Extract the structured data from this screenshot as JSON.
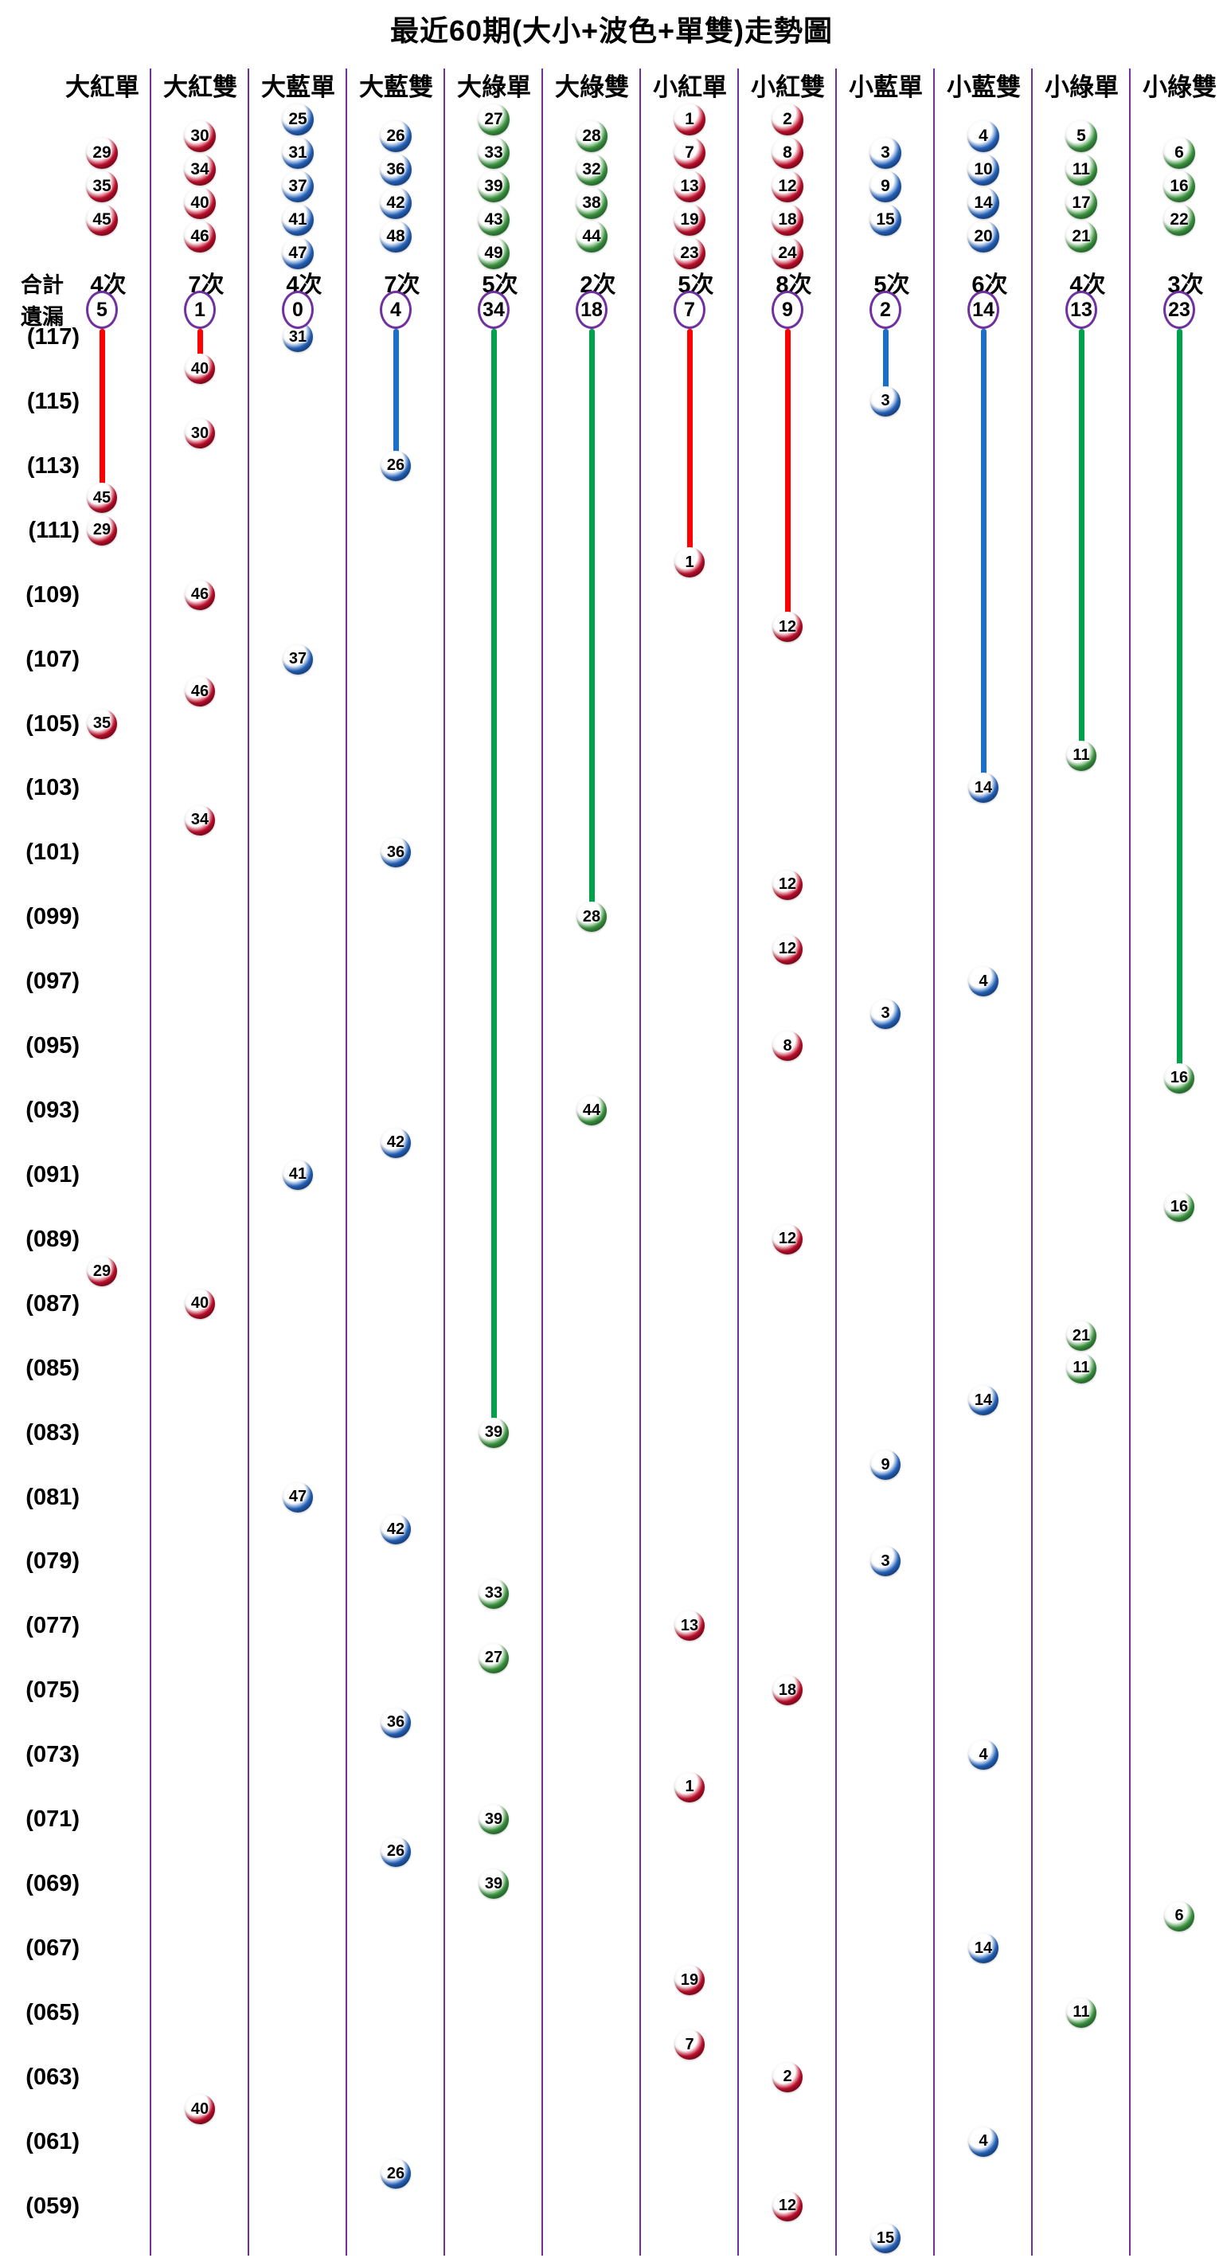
{
  "title": "最近60期(大小+波色+單雙)走勢圖",
  "gutter": {
    "total_label": "合計",
    "miss_label": "遺漏",
    "times_suffix": "次"
  },
  "colors": {
    "separator": "#7030a0",
    "miss_circle_ring": "#7030a0",
    "text": "#000000",
    "red": {
      "ball": "#cc1130",
      "ball_dark": "#7a0018",
      "line": "#ff0000"
    },
    "blue": {
      "ball": "#2a6bc8",
      "ball_dark": "#123f86",
      "line": "#1c6fc8"
    },
    "green": {
      "ball": "#43a047",
      "ball_dark": "#1b6e2a",
      "line": "#00a14b"
    }
  },
  "columns": [
    {
      "label": "大紅單",
      "color": "red",
      "numbers": [
        29,
        35,
        45
      ],
      "total": 4,
      "miss": 5
    },
    {
      "label": "大紅雙",
      "color": "red",
      "numbers": [
        30,
        34,
        40,
        46
      ],
      "total": 7,
      "miss": 1
    },
    {
      "label": "大藍單",
      "color": "blue",
      "numbers": [
        25,
        31,
        37,
        41,
        47
      ],
      "total": 4,
      "miss": 0
    },
    {
      "label": "大藍雙",
      "color": "blue",
      "numbers": [
        26,
        36,
        42,
        48
      ],
      "total": 7,
      "miss": 4
    },
    {
      "label": "大綠單",
      "color": "green",
      "numbers": [
        27,
        33,
        39,
        43,
        49
      ],
      "total": 5,
      "miss": 34
    },
    {
      "label": "大綠雙",
      "color": "green",
      "numbers": [
        28,
        32,
        38,
        44
      ],
      "total": 2,
      "miss": 18
    },
    {
      "label": "小紅單",
      "color": "red",
      "numbers": [
        1,
        7,
        13,
        19,
        23
      ],
      "total": 5,
      "miss": 7
    },
    {
      "label": "小紅雙",
      "color": "red",
      "numbers": [
        2,
        8,
        12,
        18,
        24
      ],
      "total": 8,
      "miss": 9
    },
    {
      "label": "小藍單",
      "color": "blue",
      "numbers": [
        3,
        9,
        15
      ],
      "total": 5,
      "miss": 2
    },
    {
      "label": "小藍雙",
      "color": "blue",
      "numbers": [
        4,
        10,
        14,
        20
      ],
      "total": 6,
      "miss": 14
    },
    {
      "label": "小綠單",
      "color": "green",
      "numbers": [
        5,
        11,
        17,
        21
      ],
      "total": 4,
      "miss": 13
    },
    {
      "label": "小綠雙",
      "color": "green",
      "numbers": [
        6,
        16,
        22
      ],
      "total": 3,
      "miss": 23
    }
  ],
  "period_labels": [
    "(117)",
    "(115)",
    "(113)",
    "(111)",
    "(109)",
    "(107)",
    "(105)",
    "(103)",
    "(101)",
    "(099)",
    "(097)",
    "(095)",
    "(093)",
    "(091)",
    "(089)",
    "(087)",
    "(085)",
    "(083)",
    "(081)",
    "(079)",
    "(077)",
    "(075)",
    "(073)",
    "(071)",
    "(069)",
    "(067)",
    "(065)",
    "(063)",
    "(061)",
    "(059)"
  ],
  "chart_data": {
    "type": "scatter",
    "title": "最近60期(大小+波色+單雙)走勢圖",
    "x_categories": [
      "大紅單",
      "大紅雙",
      "大藍單",
      "大藍雙",
      "大綠單",
      "大綠雙",
      "小紅單",
      "小紅雙",
      "小藍單",
      "小藍雙",
      "小綠單",
      "小綠雙"
    ],
    "y_axis": {
      "top_period": 117,
      "bottom_period": 58,
      "labeled_every": 2
    },
    "totals_per_column": [
      4,
      7,
      4,
      7,
      5,
      2,
      5,
      8,
      5,
      6,
      4,
      3
    ],
    "miss_per_column": [
      5,
      1,
      0,
      4,
      34,
      18,
      7,
      9,
      2,
      14,
      13,
      23
    ],
    "draws": [
      {
        "p": 117,
        "c": 2,
        "n": 31
      },
      {
        "p": 116,
        "c": 1,
        "n": 40
      },
      {
        "p": 115,
        "c": 8,
        "n": 3
      },
      {
        "p": 114,
        "c": 1,
        "n": 30
      },
      {
        "p": 113,
        "c": 3,
        "n": 26
      },
      {
        "p": 112,
        "c": 0,
        "n": 45
      },
      {
        "p": 111,
        "c": 0,
        "n": 29
      },
      {
        "p": 110,
        "c": 6,
        "n": 1
      },
      {
        "p": 109,
        "c": 1,
        "n": 46
      },
      {
        "p": 108,
        "c": 7,
        "n": 12
      },
      {
        "p": 107,
        "c": 2,
        "n": 37
      },
      {
        "p": 106,
        "c": 1,
        "n": 46
      },
      {
        "p": 105,
        "c": 0,
        "n": 35
      },
      {
        "p": 104,
        "c": 10,
        "n": 11
      },
      {
        "p": 103,
        "c": 9,
        "n": 14
      },
      {
        "p": 102,
        "c": 1,
        "n": 34
      },
      {
        "p": 101,
        "c": 3,
        "n": 36
      },
      {
        "p": 100,
        "c": 7,
        "n": 12
      },
      {
        "p": 99,
        "c": 5,
        "n": 28
      },
      {
        "p": 98,
        "c": 7,
        "n": 12
      },
      {
        "p": 97,
        "c": 9,
        "n": 4
      },
      {
        "p": 96,
        "c": 8,
        "n": 3
      },
      {
        "p": 95,
        "c": 7,
        "n": 8
      },
      {
        "p": 94,
        "c": 11,
        "n": 16
      },
      {
        "p": 93,
        "c": 5,
        "n": 44
      },
      {
        "p": 92,
        "c": 3,
        "n": 42
      },
      {
        "p": 91,
        "c": 2,
        "n": 41
      },
      {
        "p": 90,
        "c": 11,
        "n": 16
      },
      {
        "p": 89,
        "c": 7,
        "n": 12
      },
      {
        "p": 88,
        "c": 0,
        "n": 29
      },
      {
        "p": 87,
        "c": 1,
        "n": 40
      },
      {
        "p": 86,
        "c": 10,
        "n": 21
      },
      {
        "p": 85,
        "c": 10,
        "n": 11
      },
      {
        "p": 84,
        "c": 9,
        "n": 14
      },
      {
        "p": 83,
        "c": 4,
        "n": 39
      },
      {
        "p": 82,
        "c": 8,
        "n": 9
      },
      {
        "p": 81,
        "c": 2,
        "n": 47
      },
      {
        "p": 80,
        "c": 3,
        "n": 42
      },
      {
        "p": 79,
        "c": 8,
        "n": 3
      },
      {
        "p": 78,
        "c": 4,
        "n": 33
      },
      {
        "p": 77,
        "c": 6,
        "n": 13
      },
      {
        "p": 76,
        "c": 4,
        "n": 27
      },
      {
        "p": 75,
        "c": 7,
        "n": 18
      },
      {
        "p": 74,
        "c": 3,
        "n": 36
      },
      {
        "p": 73,
        "c": 9,
        "n": 4
      },
      {
        "p": 72,
        "c": 6,
        "n": 1
      },
      {
        "p": 71,
        "c": 4,
        "n": 39
      },
      {
        "p": 70,
        "c": 3,
        "n": 26
      },
      {
        "p": 69,
        "c": 4,
        "n": 39
      },
      {
        "p": 68,
        "c": 11,
        "n": 6
      },
      {
        "p": 67,
        "c": 9,
        "n": 14
      },
      {
        "p": 66,
        "c": 6,
        "n": 19
      },
      {
        "p": 65,
        "c": 10,
        "n": 11
      },
      {
        "p": 64,
        "c": 6,
        "n": 7
      },
      {
        "p": 63,
        "c": 7,
        "n": 2
      },
      {
        "p": 62,
        "c": 1,
        "n": 40
      },
      {
        "p": 61,
        "c": 9,
        "n": 4
      },
      {
        "p": 60,
        "c": 3,
        "n": 26
      },
      {
        "p": 59,
        "c": 7,
        "n": 12
      },
      {
        "p": 58,
        "c": 8,
        "n": 15
      }
    ]
  }
}
